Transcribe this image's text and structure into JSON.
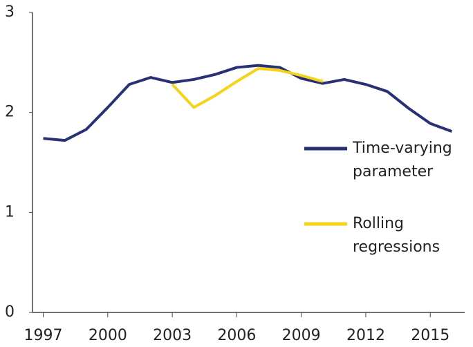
{
  "chart_data": {
    "type": "line",
    "x": [
      1997,
      1998,
      1999,
      2000,
      2001,
      2002,
      2003,
      2004,
      2005,
      2006,
      2007,
      2008,
      2009,
      2010,
      2011,
      2012,
      2013,
      2014,
      2015,
      2016
    ],
    "series": [
      {
        "name": "Time-varying parameter",
        "color": "#283173",
        "values": [
          1.74,
          1.72,
          1.83,
          2.05,
          2.28,
          2.35,
          2.3,
          2.33,
          2.38,
          2.45,
          2.47,
          2.45,
          2.34,
          2.29,
          2.33,
          2.28,
          2.21,
          2.04,
          1.89,
          1.81
        ]
      },
      {
        "name": "Rolling regressions",
        "color": "#f5d319",
        "values": [
          null,
          null,
          null,
          null,
          null,
          null,
          2.28,
          2.05,
          2.17,
          2.31,
          2.44,
          2.42,
          2.37,
          2.31,
          null,
          null,
          null,
          null,
          null,
          null
        ]
      }
    ],
    "xlim": [
      1996.5,
      2016.6
    ],
    "xticks": [
      1997,
      2000,
      2003,
      2006,
      2009,
      2012,
      2015
    ],
    "ylim": [
      0,
      3
    ],
    "yticks": [
      0,
      1,
      2,
      3
    ],
    "grid": false
  }
}
